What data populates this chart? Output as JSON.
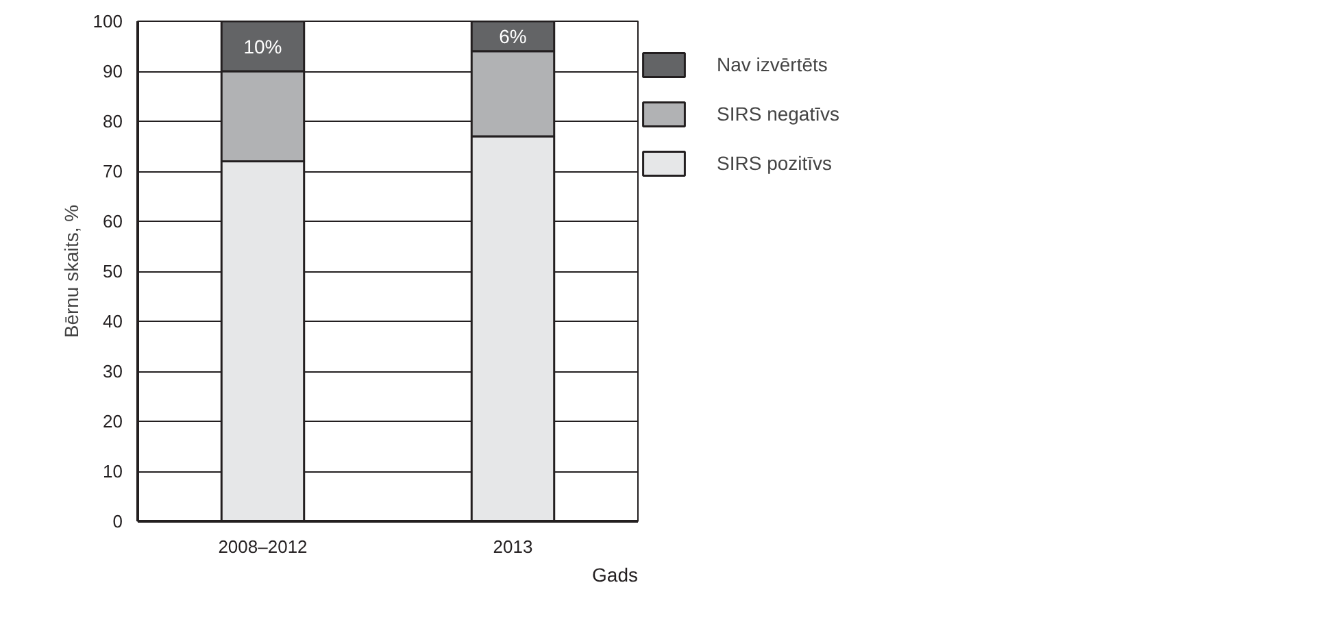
{
  "chart_data": {
    "type": "bar",
    "stacked": true,
    "xlabel": "Gads",
    "ylabel": "Bērnu skaits, %",
    "categories": [
      "2008–2012",
      "2013"
    ],
    "series": [
      {
        "name": "SIRS pozitīvs",
        "color": "#e6e7e8",
        "values": [
          72,
          77
        ]
      },
      {
        "name": "SIRS negatīvs",
        "color": "#b1b2b4",
        "values": [
          18,
          17
        ]
      },
      {
        "name": "Nav izvērtēts",
        "color": "#636466",
        "values": [
          10,
          6
        ],
        "value_labels": [
          "10%",
          "6%"
        ]
      }
    ],
    "ylim": [
      0,
      100
    ],
    "yticks": [
      0,
      10,
      20,
      30,
      40,
      50,
      60,
      70,
      80,
      90,
      100
    ],
    "grid": "y",
    "legend": "right"
  }
}
